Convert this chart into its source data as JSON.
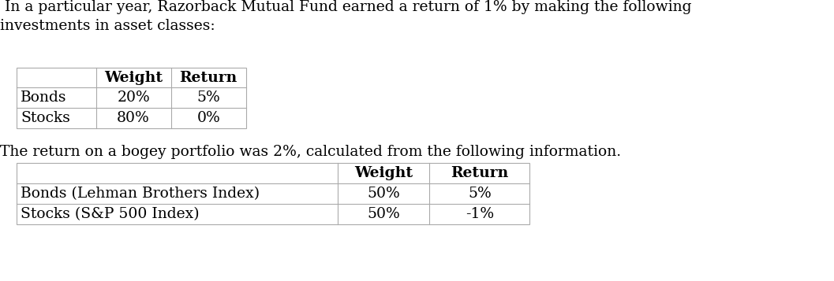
{
  "background_color": "#ffffff",
  "text_color": "#000000",
  "intro_text_line1": " In a particular year, Razorback Mutual Fund earned a return of 1% by making the following",
  "intro_text_line2": "investments in asset classes:",
  "bogey_text": "The return on a bogey portfolio was 2%, calculated from the following information.",
  "table1_headers": [
    "Weight",
    "Return"
  ],
  "table1_rows": [
    [
      "Bonds",
      "20%",
      "5%"
    ],
    [
      "Stocks",
      "80%",
      "0%"
    ]
  ],
  "table2_headers": [
    "Weight",
    "Return"
  ],
  "table2_rows": [
    [
      "Bonds (Lehman Brothers Index)",
      "50%",
      "5%"
    ],
    [
      "Stocks (S&P 500 Index)",
      "50%",
      "-1%"
    ]
  ],
  "font_size": 13.5,
  "table_line_color": "#aaaaaa"
}
